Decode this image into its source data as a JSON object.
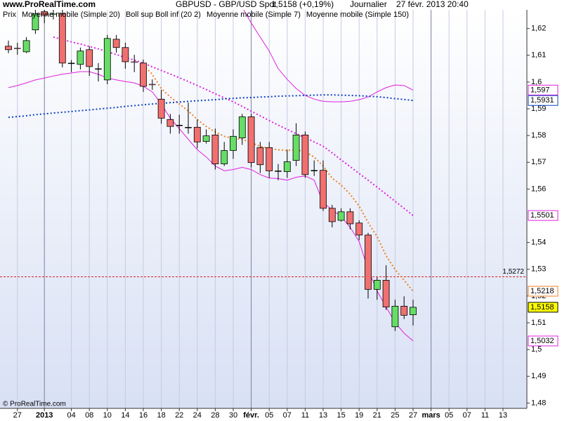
{
  "chart_data": {
    "type": "candlestick",
    "watermark": "www.ProRealTime.com",
    "title": "GBPUSD - GBP/USD Spot",
    "price_text": "1,5158 (+0,19%)",
    "period": "Journalier",
    "datetime": "27 févr. 2013 20:40",
    "copyright": "© ProRealTime.com",
    "price_legend": "Prix",
    "categories": [
      null,
      "27",
      null,
      null,
      "2013",
      null,
      null,
      "04",
      null,
      "08",
      null,
      "10",
      null,
      "14",
      null,
      "16",
      null,
      "18",
      null,
      "22",
      null,
      "24",
      null,
      "28",
      null,
      "30",
      null,
      "févr.",
      null,
      "05",
      null,
      "07",
      null,
      "11",
      null,
      "13",
      null,
      "15",
      null,
      "19",
      null,
      "21",
      null,
      "25",
      null,
      "27",
      null,
      "mars",
      null,
      "05",
      null,
      "07",
      null,
      "11",
      null,
      "13"
    ],
    "open": [
      1.6134,
      1.6127,
      1.6113,
      1.6195,
      1.6263,
      1.6253,
      1.6255,
      1.6071,
      1.6066,
      1.6121,
      1.605,
      1.6008,
      1.616,
      1.6129,
      1.6076,
      1.6071,
      1.5992,
      1.5936,
      1.586,
      1.5839,
      1.5831,
      1.5831,
      1.5778,
      1.5802,
      1.5694,
      1.5744,
      1.5791,
      1.587,
      1.5755,
      1.5755,
      1.5668,
      1.5665,
      1.5707,
      1.5802,
      1.567,
      1.567,
      1.5528,
      1.5483,
      1.5515,
      1.5473,
      1.5428,
      1.5225,
      1.5259,
      1.5085,
      1.5162,
      1.513,
      null,
      null,
      null,
      null,
      null,
      null,
      null,
      null,
      null,
      null
    ],
    "high": [
      1.6155,
      1.6147,
      1.6168,
      1.627,
      1.627,
      1.627,
      1.627,
      1.6082,
      1.6129,
      1.6134,
      1.6071,
      1.6176,
      1.6176,
      1.6147,
      1.6102,
      1.6084,
      1.601,
      1.5971,
      1.5881,
      1.5878,
      1.5923,
      1.586,
      1.5823,
      1.5826,
      1.5776,
      1.5823,
      1.5881,
      1.5881,
      1.5776,
      1.5776,
      1.5694,
      1.5747,
      1.5846,
      1.5815,
      1.5707,
      1.5707,
      1.5541,
      1.5528,
      1.5528,
      1.5483,
      1.5436,
      1.527,
      1.5315,
      1.5186,
      1.5199,
      1.5186,
      null,
      null,
      null,
      null,
      null,
      null,
      null,
      null,
      null,
      null
    ],
    "low": [
      1.6108,
      1.6102,
      1.6108,
      1.618,
      1.622,
      1.6234,
      1.6055,
      1.6037,
      1.6047,
      1.6023,
      1.6002,
      1.5992,
      1.611,
      1.605,
      1.6037,
      1.5963,
      1.5971,
      1.5844,
      1.5807,
      1.5807,
      1.5807,
      1.5752,
      1.577,
      1.5673,
      1.5686,
      1.5713,
      1.5765,
      1.5681,
      1.566,
      1.5642,
      1.5633,
      1.5642,
      1.5686,
      1.5642,
      1.5649,
      1.5518,
      1.5457,
      1.5478,
      1.5449,
      1.5409,
      1.5191,
      1.5186,
      1.5148,
      1.5069,
      1.5114,
      1.509,
      null,
      null,
      null,
      null,
      null,
      null,
      null,
      null,
      null,
      null
    ],
    "close": [
      1.6121,
      1.6125,
      1.6155,
      1.6255,
      1.625,
      1.6255,
      1.6071,
      1.6071,
      1.6116,
      1.6058,
      1.605,
      1.6163,
      1.6129,
      1.6076,
      1.6074,
      1.5984,
      1.599,
      1.5865,
      1.5834,
      1.5839,
      1.5831,
      1.5776,
      1.5799,
      1.5694,
      1.5744,
      1.5797,
      1.587,
      1.5699,
      1.5691,
      1.5668,
      1.5668,
      1.5702,
      1.5802,
      1.5654,
      1.567,
      1.5528,
      1.5478,
      1.5515,
      1.547,
      1.5428,
      1.5225,
      1.5259,
      1.5159,
      1.5162,
      1.5128,
      1.5158,
      null,
      null,
      null,
      null,
      null,
      null,
      null,
      null,
      null,
      null
    ],
    "up_color": "#66dd66",
    "down_color": "#f07070",
    "last_price_label": "1,5158",
    "last_price_color": "#ffff00",
    "series": [
      {
        "name": "Moyenne mobile (Simple 20)",
        "color": "#e020e0",
        "style": "dotted",
        "values": [
          null,
          null,
          null,
          null,
          null,
          1.6168,
          1.6159,
          1.615,
          1.6142,
          1.6133,
          1.6124,
          1.6113,
          1.6103,
          1.6092,
          1.6082,
          1.6071,
          1.6057,
          1.6043,
          1.603,
          1.6016,
          1.6002,
          1.5987,
          1.5972,
          1.5956,
          1.5941,
          1.5926,
          1.5909,
          1.5891,
          1.5874,
          1.5856,
          1.5839,
          1.5823,
          1.5807,
          1.5792,
          1.5776,
          1.576,
          1.5735,
          1.5709,
          1.5684,
          1.5658,
          1.5633,
          1.5607,
          1.5581,
          1.5554,
          1.5528,
          1.5501,
          null,
          null,
          null,
          null,
          null,
          null,
          null,
          null,
          null,
          null
        ],
        "last_label": "1,5501"
      },
      {
        "name": "Boll sup Boll inf (20 2)",
        "color": "#e020e0",
        "style": "solid",
        "upper": [
          null,
          null,
          null,
          null,
          null,
          null,
          null,
          null,
          null,
          null,
          null,
          null,
          null,
          null,
          null,
          null,
          null,
          null,
          null,
          null,
          null,
          null,
          null,
          null,
          null,
          null,
          1.628,
          1.6221,
          1.6168,
          1.6116,
          1.605,
          1.601,
          1.5976,
          1.595,
          1.5936,
          1.5928,
          1.5926,
          1.5926,
          1.5928,
          1.5934,
          1.5944,
          1.5963,
          1.5979,
          1.5989,
          1.5987,
          1.597,
          null,
          null,
          null,
          null,
          null,
          null,
          null,
          null,
          null,
          null
        ],
        "lower": [
          1.5979,
          1.5987,
          1.5997,
          1.6008,
          1.6015,
          1.6023,
          1.6029,
          1.6034,
          1.6039,
          1.6039,
          1.6029,
          1.6015,
          1.6008,
          1.6002,
          1.5997,
          1.5984,
          1.5963,
          1.5918,
          1.5865,
          1.5826,
          1.5786,
          1.5747,
          1.572,
          1.5686,
          1.5668,
          1.5673,
          1.5681,
          1.5673,
          1.5654,
          1.5641,
          1.5639,
          1.5633,
          1.5644,
          1.5649,
          1.5633,
          1.5549,
          1.5523,
          1.5497,
          1.5457,
          1.5404,
          1.5299,
          1.5219,
          1.5159,
          1.5101,
          1.5061,
          1.5032,
          null,
          null,
          null,
          null,
          null,
          null,
          null,
          null,
          null,
          null
        ],
        "upper_last_label": "1,597",
        "lower_last_label": "1,5032"
      },
      {
        "name": "Moyenne mobile (Simple 7)",
        "color": "#f08020",
        "style": "dotted",
        "values": [
          null,
          null,
          null,
          null,
          null,
          null,
          null,
          null,
          null,
          null,
          null,
          null,
          null,
          null,
          null,
          1.6063,
          1.6029,
          1.5976,
          1.5944,
          1.5918,
          1.5892,
          1.586,
          1.5834,
          1.5813,
          1.5797,
          1.5789,
          1.5786,
          1.5773,
          1.576,
          1.5752,
          1.5747,
          1.5744,
          1.5747,
          1.5739,
          1.572,
          1.5686,
          1.5641,
          1.5615,
          1.5581,
          1.5536,
          1.5475,
          1.5422,
          1.5351,
          1.5299,
          1.5259,
          1.5218,
          null,
          null,
          null,
          null,
          null,
          null,
          null,
          null,
          null,
          null
        ],
        "last_label": "1,5218"
      },
      {
        "name": "Moyenne mobile (Simple 150)",
        "color": "#1040c0",
        "style": "dotted",
        "values": [
          1.5868,
          1.5871,
          1.5874,
          1.5878,
          1.5881,
          1.5884,
          1.5887,
          1.589,
          1.5893,
          1.5896,
          1.5899,
          1.5902,
          1.5905,
          1.5909,
          1.5912,
          1.5915,
          1.5918,
          1.592,
          1.5923,
          1.5925,
          1.5928,
          1.593,
          1.5932,
          1.5934,
          1.5937,
          1.5939,
          1.5941,
          1.5942,
          1.5944,
          1.5945,
          1.5947,
          1.5948,
          1.5949,
          1.595,
          1.5951,
          1.5952,
          1.5952,
          1.5951,
          1.595,
          1.5949,
          1.5947,
          1.5945,
          1.5942,
          1.5938,
          1.5935,
          1.5931,
          null,
          null,
          null,
          null,
          null,
          null,
          null,
          null,
          null,
          null
        ],
        "last_label": "1,5931"
      }
    ],
    "reference_line": {
      "value": 1.5272,
      "label": "1,5272",
      "color": "#dd2020"
    },
    "ylim": [
      1.478,
      1.627
    ],
    "yticks": [
      {
        "value": 1.48,
        "label": "1,48"
      },
      {
        "value": 1.49,
        "label": "1,49"
      },
      {
        "value": 1.5,
        "label": "1,5"
      },
      {
        "value": 1.51,
        "label": "1,51"
      },
      {
        "value": 1.52,
        "label": "1,52"
      },
      {
        "value": 1.53,
        "label": "1,53"
      },
      {
        "value": 1.54,
        "label": "1,54"
      },
      {
        "value": 1.56,
        "label": "1,56"
      },
      {
        "value": 1.57,
        "label": "1,57"
      },
      {
        "value": 1.58,
        "label": "1,58"
      },
      {
        "value": 1.59,
        "label": "1,59"
      },
      {
        "value": 1.6,
        "label": "1,6"
      },
      {
        "value": 1.61,
        "label": "1,61"
      },
      {
        "value": 1.62,
        "label": "1,62"
      }
    ],
    "grid": true
  }
}
